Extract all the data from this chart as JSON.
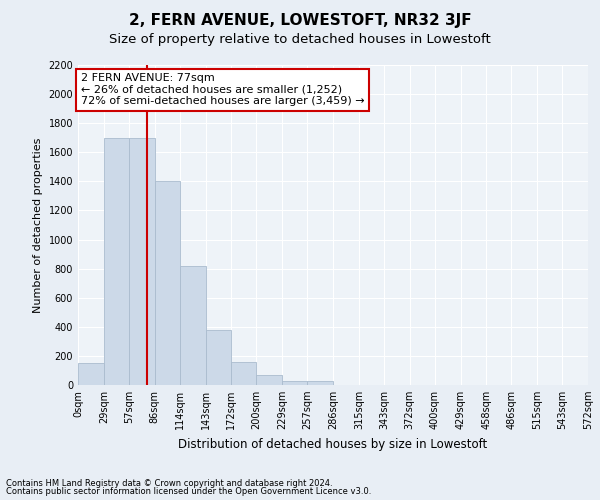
{
  "title": "2, FERN AVENUE, LOWESTOFT, NR32 3JF",
  "subtitle": "Size of property relative to detached houses in Lowestoft",
  "xlabel": "Distribution of detached houses by size in Lowestoft",
  "ylabel": "Number of detached properties",
  "footer_line1": "Contains HM Land Registry data © Crown copyright and database right 2024.",
  "footer_line2": "Contains public sector information licensed under the Open Government Licence v3.0.",
  "bin_edges": [
    0,
    29,
    57,
    86,
    114,
    143,
    172,
    200,
    229,
    257,
    286,
    315,
    343,
    372,
    400,
    429,
    458,
    486,
    515,
    543,
    572
  ],
  "bar_heights": [
    150,
    1700,
    1700,
    1400,
    820,
    380,
    160,
    70,
    30,
    30,
    0,
    0,
    0,
    0,
    0,
    0,
    0,
    0,
    0,
    0
  ],
  "bar_color": "#ccd9e8",
  "bar_edge_color": "#aabcce",
  "property_size": 77,
  "vline_color": "#cc0000",
  "annotation_line1": "2 FERN AVENUE: 77sqm",
  "annotation_line2": "← 26% of detached houses are smaller (1,252)",
  "annotation_line3": "72% of semi-detached houses are larger (3,459) →",
  "annotation_box_edge_color": "#cc0000",
  "ylim": [
    0,
    2200
  ],
  "yticks": [
    0,
    200,
    400,
    600,
    800,
    1000,
    1200,
    1400,
    1600,
    1800,
    2000,
    2200
  ],
  "bg_color": "#e8eef5",
  "plot_bg_color": "#eef3f8",
  "grid_color": "#ffffff",
  "title_fontsize": 11,
  "subtitle_fontsize": 9.5,
  "ylabel_fontsize": 8,
  "xlabel_fontsize": 8.5,
  "tick_fontsize": 7,
  "annotation_fontsize": 8,
  "footer_fontsize": 6
}
